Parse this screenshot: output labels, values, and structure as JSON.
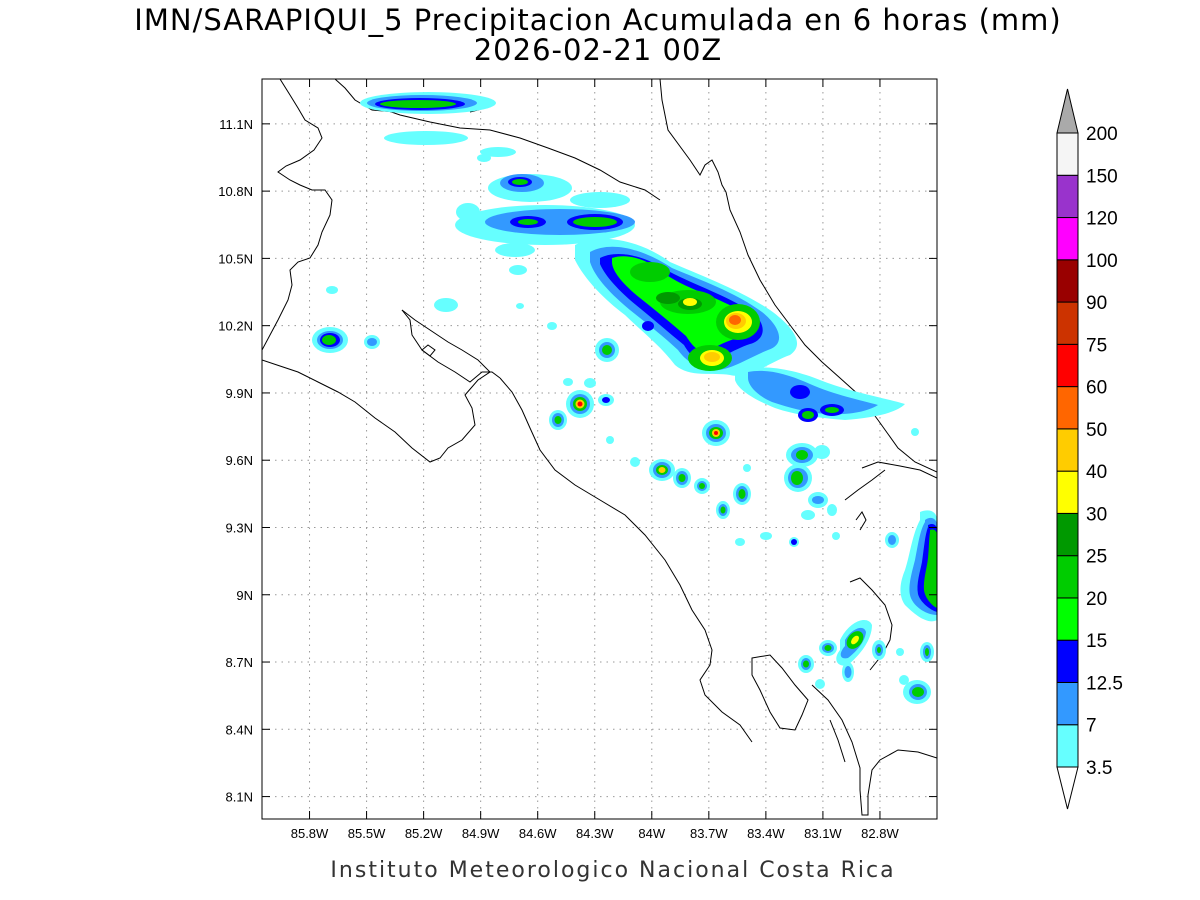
{
  "title": {
    "line1": "IMN/SARAPIQUI_5 Precipitacion Acumulada en 6 horas (mm)",
    "line2": "2026-02-21 00Z"
  },
  "credit": "Instituto Meteorologico Nacional Costa Rica",
  "map": {
    "lon_range": [
      -86.05,
      -82.5
    ],
    "lat_range": [
      8.0,
      11.3
    ],
    "x_ticks": [
      {
        "v": -85.8,
        "label": "85.8W"
      },
      {
        "v": -85.5,
        "label": "85.5W"
      },
      {
        "v": -85.2,
        "label": "85.2W"
      },
      {
        "v": -84.9,
        "label": "84.9W"
      },
      {
        "v": -84.6,
        "label": "84.6W"
      },
      {
        "v": -84.3,
        "label": "84.3W"
      },
      {
        "v": -84.0,
        "label": "84W"
      },
      {
        "v": -83.7,
        "label": "83.7W"
      },
      {
        "v": -83.4,
        "label": "83.4W"
      },
      {
        "v": -83.1,
        "label": "83.1W"
      },
      {
        "v": -82.8,
        "label": "82.8W"
      }
    ],
    "y_ticks": [
      {
        "v": 8.1,
        "label": "8.1N"
      },
      {
        "v": 8.4,
        "label": "8.4N"
      },
      {
        "v": 8.7,
        "label": "8.7N"
      },
      {
        "v": 9.0,
        "label": "9N"
      },
      {
        "v": 9.3,
        "label": "9.3N"
      },
      {
        "v": 9.6,
        "label": "9.6N"
      },
      {
        "v": 9.9,
        "label": "9.9N"
      },
      {
        "v": 10.2,
        "label": "10.2N"
      },
      {
        "v": 10.5,
        "label": "10.5N"
      },
      {
        "v": 10.8,
        "label": "10.8N"
      },
      {
        "v": 11.1,
        "label": "11.1N"
      }
    ],
    "grid": "dotted"
  },
  "colorbar": {
    "levels": [
      {
        "label": "3.5",
        "color": "#66ffff"
      },
      {
        "label": "7",
        "color": "#3399ff"
      },
      {
        "label": "12.5",
        "color": "#0000ff"
      },
      {
        "label": "15",
        "color": "#00ff00"
      },
      {
        "label": "20",
        "color": "#00cc00"
      },
      {
        "label": "25",
        "color": "#009900"
      },
      {
        "label": "30",
        "color": "#ffff00"
      },
      {
        "label": "40",
        "color": "#ffcc00"
      },
      {
        "label": "50",
        "color": "#ff6600"
      },
      {
        "label": "60",
        "color": "#ff0000"
      },
      {
        "label": "75",
        "color": "#cc3300"
      },
      {
        "label": "90",
        "color": "#990000"
      },
      {
        "label": "100",
        "color": "#ff00ff"
      },
      {
        "label": "120",
        "color": "#9933cc"
      },
      {
        "label": "150",
        "color": "#f5f5f5"
      },
      {
        "label": "200",
        "color": "#aaaaaa"
      }
    ]
  }
}
